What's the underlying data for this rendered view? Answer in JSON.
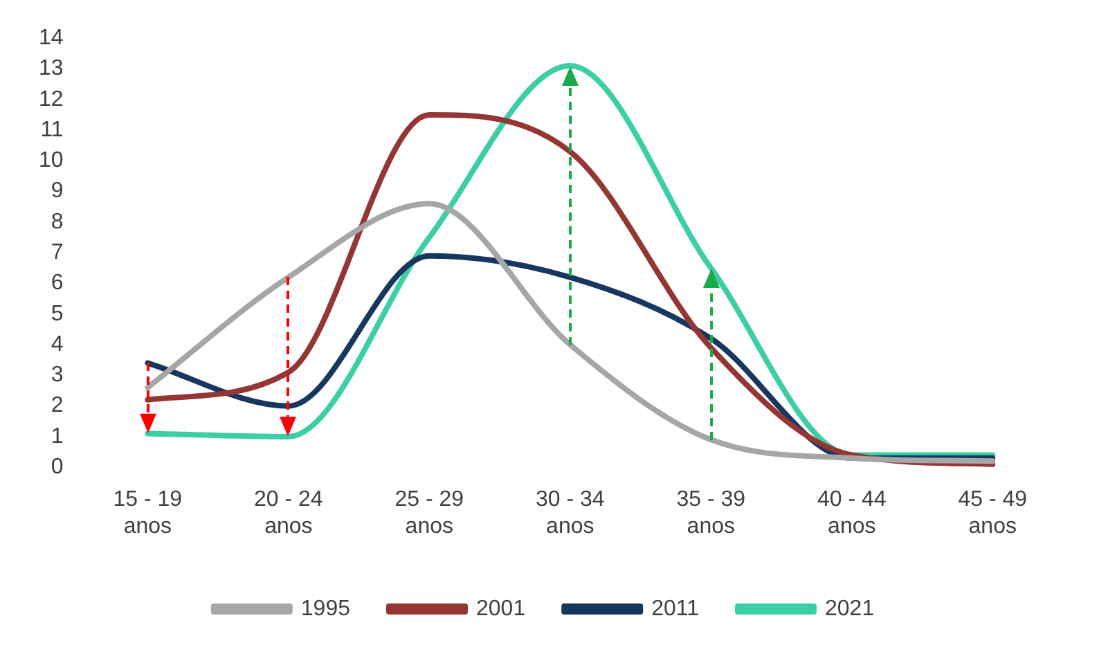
{
  "chart_data": {
    "type": "line",
    "categories": [
      "15 - 19\nanos",
      "20 - 24\nanos",
      "25 - 29\nanos",
      "30 - 34\nanos",
      "35 - 39\nanos",
      "40 - 44\nanos",
      "45 - 49\nanos"
    ],
    "series": [
      {
        "name": "1995",
        "color": "#a6a6a6",
        "values": [
          2.6,
          6.2,
          8.6,
          4.0,
          0.9,
          0.3,
          0.2
        ]
      },
      {
        "name": "2001",
        "color": "#943634",
        "values": [
          2.2,
          3.1,
          11.5,
          10.3,
          3.9,
          0.4,
          0.1
        ]
      },
      {
        "name": "2011",
        "color": "#17375e",
        "values": [
          3.4,
          2.0,
          6.9,
          6.2,
          4.2,
          0.3,
          0.3
        ]
      },
      {
        "name": "2021",
        "color": "#3ccfa6",
        "values": [
          1.1,
          1.0,
          7.5,
          13.1,
          6.5,
          0.4,
          0.4
        ]
      }
    ],
    "ylim": [
      0,
      14
    ],
    "yticks": [
      0,
      1,
      2,
      3,
      4,
      5,
      6,
      7,
      8,
      9,
      10,
      11,
      12,
      13,
      14
    ],
    "grid": false,
    "legend": "bottom",
    "marker": "none",
    "line_style": "solid"
  }
}
